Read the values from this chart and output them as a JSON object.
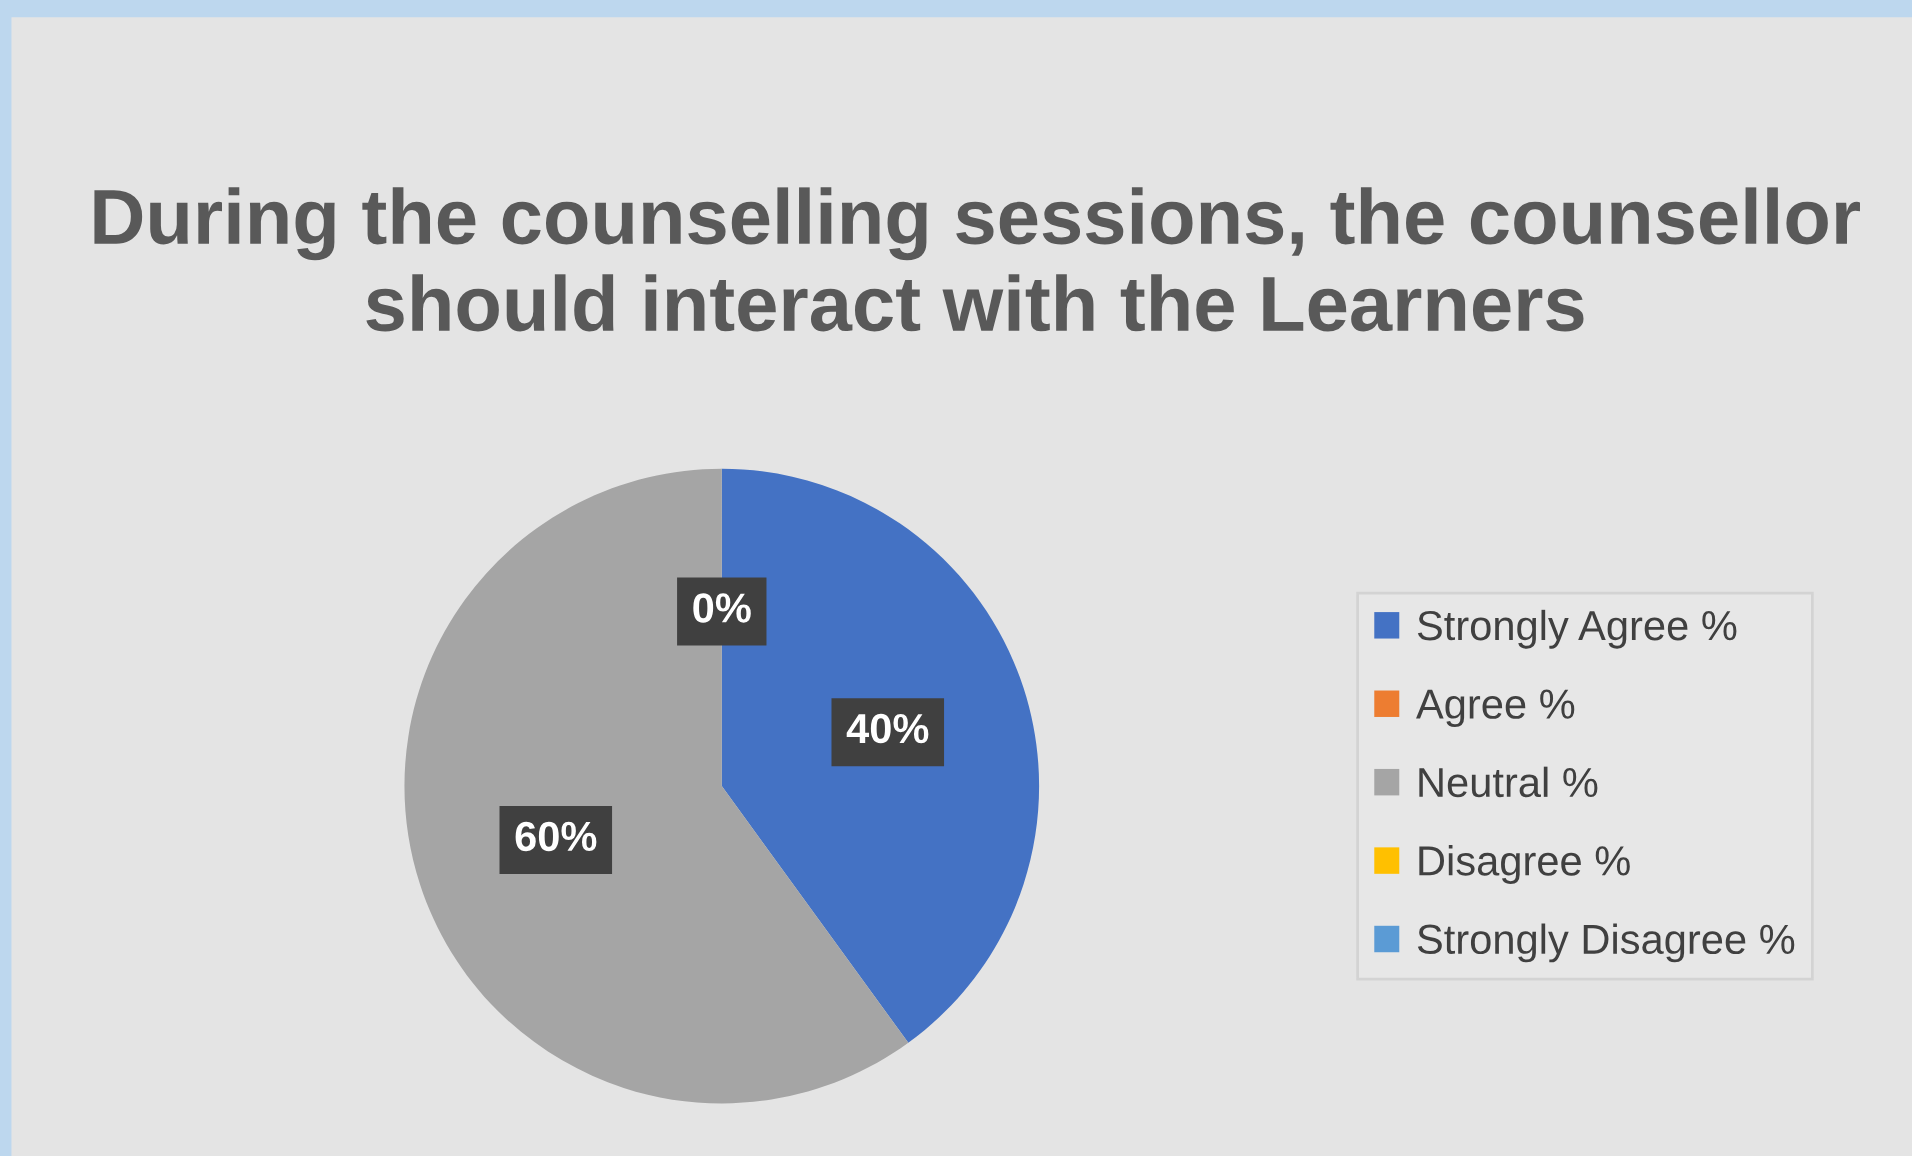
{
  "chart_data": {
    "type": "pie",
    "title": "During the counselling sessions, the counsellor should interact with the Learners",
    "categories": [
      "Strongly Agree %",
      "Agree %",
      "Neutral %",
      "Disagree %",
      "Strongly Disagree %"
    ],
    "values": [
      40,
      0,
      60,
      0,
      0
    ],
    "colors": [
      "#4472c4",
      "#ed7d31",
      "#a5a5a5",
      "#ffc000",
      "#5b9bd5"
    ],
    "value_labels": [
      "40%",
      null,
      "60%",
      null,
      "0%"
    ],
    "legend": "right"
  }
}
